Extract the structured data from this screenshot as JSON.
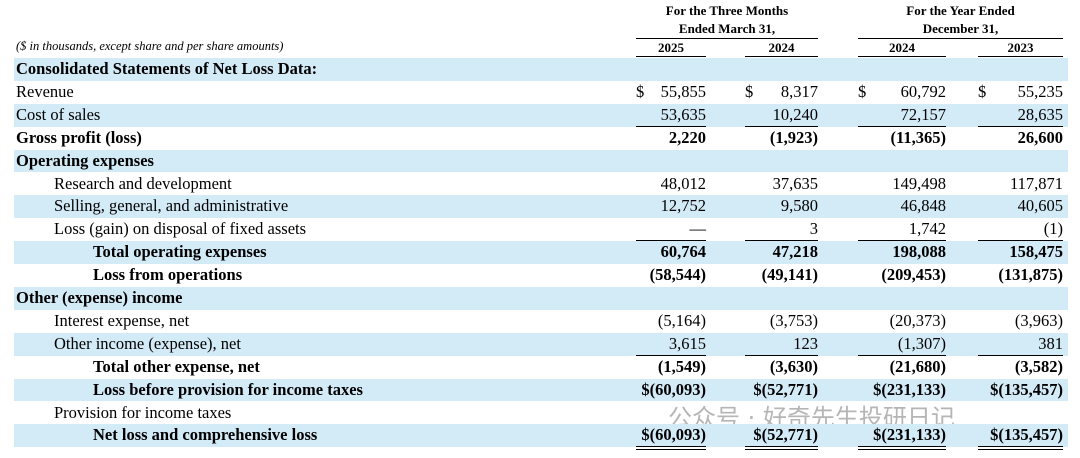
{
  "header": {
    "note": "($ in thousands, except share and per share amounts)",
    "groups": [
      {
        "lines": [
          "For the Three Months",
          "Ended March 31,"
        ],
        "years": [
          "2025",
          "2024"
        ]
      },
      {
        "lines": [
          "For the Year Ended",
          "December 31,"
        ],
        "years": [
          "2024",
          "2023"
        ]
      }
    ]
  },
  "table": {
    "rows": [
      {
        "label": "Consolidated Statements of Net Loss Data:",
        "bold": true,
        "indent": 0,
        "shade": true
      },
      {
        "label": "Revenue",
        "indent": 0,
        "symbols": [
          "$",
          "$",
          "$",
          "$"
        ],
        "values": [
          "55,855",
          "8,317",
          "60,792",
          "55,235"
        ]
      },
      {
        "label": "Cost of sales",
        "indent": 0,
        "shade": true,
        "rule": "single",
        "values": [
          "53,635",
          "10,240",
          "72,157",
          "28,635"
        ]
      },
      {
        "label": "Gross profit (loss)",
        "bold": true,
        "indent": 0,
        "values": [
          "2,220",
          "(1,923)",
          "(11,365)",
          "26,600"
        ]
      },
      {
        "label": "Operating expenses",
        "bold": true,
        "indent": 0,
        "shade": true
      },
      {
        "label": "Research and development",
        "indent": 1,
        "values": [
          "48,012",
          "37,635",
          "149,498",
          "117,871"
        ]
      },
      {
        "label": "Selling, general, and administrative",
        "indent": 1,
        "shade": true,
        "values": [
          "12,752",
          "9,580",
          "46,848",
          "40,605"
        ]
      },
      {
        "label": "Loss (gain) on disposal of fixed assets",
        "indent": 1,
        "rule": "single",
        "values": [
          "—",
          "3",
          "1,742",
          "(1)"
        ]
      },
      {
        "label": "Total operating expenses",
        "bold": true,
        "indent": 2,
        "shade": true,
        "values": [
          "60,764",
          "47,218",
          "198,088",
          "158,475"
        ]
      },
      {
        "label": "Loss from operations",
        "bold": true,
        "indent": 2,
        "values": [
          "(58,544)",
          "(49,141)",
          "(209,453)",
          "(131,875)"
        ]
      },
      {
        "label": "Other (expense) income",
        "bold": true,
        "indent": 0,
        "shade": true
      },
      {
        "label": "Interest expense, net",
        "indent": 1,
        "values": [
          "(5,164)",
          "(3,753)",
          "(20,373)",
          "(3,963)"
        ]
      },
      {
        "label": "Other income (expense), net",
        "indent": 1,
        "shade": true,
        "rule": "single",
        "values": [
          "3,615",
          "123",
          "(1,307)",
          "381"
        ]
      },
      {
        "label": "Total other expense, net",
        "bold": true,
        "indent": 2,
        "values": [
          "(1,549)",
          "(3,630)",
          "(21,680)",
          "(3,582)"
        ]
      },
      {
        "label": "Loss before provision for income taxes",
        "bold": true,
        "indent": 2,
        "shade": true,
        "values": [
          "$(60,093)",
          "$(52,771)",
          "$(231,133)",
          "$(135,457)"
        ]
      },
      {
        "label": "Provision for income taxes",
        "indent": 1
      },
      {
        "label": "Net loss and comprehensive loss",
        "bold": true,
        "indent": 2,
        "shade": true,
        "rule": "double",
        "values": [
          "$(60,093)",
          "$(52,771)",
          "$(231,133)",
          "$(135,457)"
        ]
      }
    ]
  },
  "watermark": "公众号 · 好奇先生投研日记"
}
